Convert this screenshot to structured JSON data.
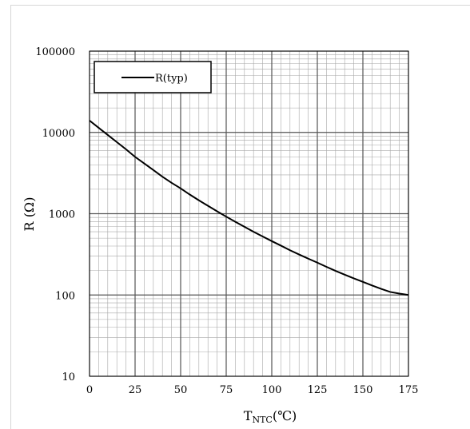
{
  "chart_data": {
    "type": "line",
    "title": "",
    "xlabel_main": "T",
    "xlabel_sub": "NTC",
    "xlabel_unit": "(℃)",
    "ylabel": "R (Ω)",
    "xlim": [
      0,
      175
    ],
    "ylim": [
      10,
      100000
    ],
    "yscale": "log",
    "x_ticks": [
      0,
      25,
      50,
      75,
      100,
      125,
      150,
      175
    ],
    "y_ticks": [
      10,
      100,
      1000,
      10000,
      100000
    ],
    "grid": true,
    "legend_position": "top-left",
    "series": [
      {
        "name": "R(typ)",
        "color": "#000000",
        "x": [
          0,
          5,
          10,
          15,
          20,
          25,
          30,
          35,
          40,
          45,
          50,
          55,
          60,
          65,
          70,
          75,
          80,
          85,
          90,
          95,
          100,
          105,
          110,
          115,
          120,
          125,
          130,
          135,
          140,
          145,
          150,
          155,
          160,
          165,
          170,
          175
        ],
        "y": [
          14000,
          11400,
          9300,
          7600,
          6200,
          5000,
          4150,
          3450,
          2850,
          2400,
          2050,
          1720,
          1460,
          1250,
          1070,
          920,
          795,
          690,
          600,
          525,
          460,
          405,
          355,
          315,
          280,
          250,
          222,
          198,
          178,
          160,
          145,
          131,
          119,
          109,
          104,
          100
        ]
      }
    ]
  }
}
